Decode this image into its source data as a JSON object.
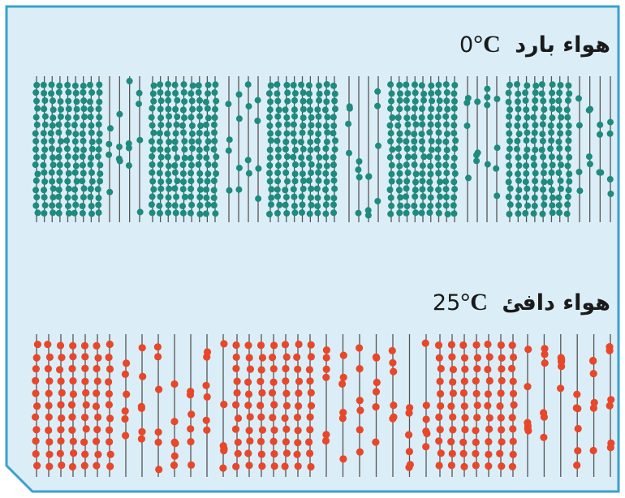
{
  "panels": [
    {
      "id": "cold",
      "label_text": "هواء بارد",
      "temp_value": "0",
      "temp_unit": "°C",
      "particle_color": "#1f8a7e",
      "pattern": "alternating bands of densely packed and sparse particles"
    },
    {
      "id": "warm",
      "label_text": "هواء دافئ",
      "temp_value": "25",
      "temp_unit": "°C",
      "particle_color": "#e8472a",
      "pattern": "alternating bands of moderately packed and sparse particles"
    }
  ],
  "colors": {
    "background": "#dbeef7",
    "border": "#3aa0cf",
    "line": "#555555"
  }
}
